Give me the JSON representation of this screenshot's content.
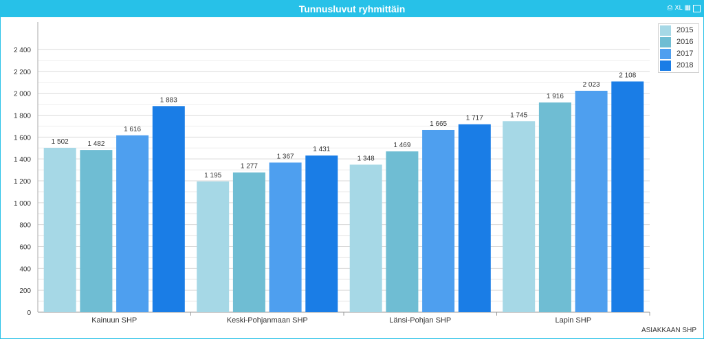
{
  "window": {
    "title": "Tunnusluvut ryhmittäin",
    "xl_label": "XL"
  },
  "footer_label": "ASIAKKAAN SHP",
  "chart_data": {
    "type": "bar",
    "categories": [
      "Kainuun SHP",
      "Keski-Pohjanmaan SHP",
      "Länsi-Pohjan SHP",
      "Lapin SHP"
    ],
    "series": [
      {
        "name": "2015",
        "color": "#a6d8e6",
        "values": [
          1502,
          1195,
          1348,
          1745
        ],
        "labels": [
          "1 502",
          "1 195",
          "1 348",
          "1 745"
        ]
      },
      {
        "name": "2016",
        "color": "#6fbdd3",
        "values": [
          1482,
          1277,
          1469,
          1916
        ],
        "labels": [
          "1 482",
          "1 277",
          "1 469",
          "1 916"
        ]
      },
      {
        "name": "2017",
        "color": "#4e9fef",
        "values": [
          1616,
          1367,
          1665,
          2023
        ],
        "labels": [
          "1 616",
          "1 367",
          "1 665",
          "2 023"
        ]
      },
      {
        "name": "2018",
        "color": "#1a7de6",
        "values": [
          1883,
          1431,
          1717,
          2108
        ],
        "labels": [
          "1 883",
          "1 431",
          "1 717",
          "2 108"
        ]
      }
    ],
    "ylim": [
      0,
      2400
    ],
    "yticks": [
      0,
      200,
      400,
      600,
      800,
      1000,
      1200,
      1400,
      1600,
      1800,
      2000,
      2200,
      2400
    ],
    "ytick_labels": [
      "0",
      "200",
      "400",
      "600",
      "800",
      "1 000",
      "1 200",
      "1 400",
      "1 600",
      "1 800",
      "2 000",
      "2 200",
      "2 400"
    ],
    "grid": true,
    "legend_position": "top-right"
  }
}
